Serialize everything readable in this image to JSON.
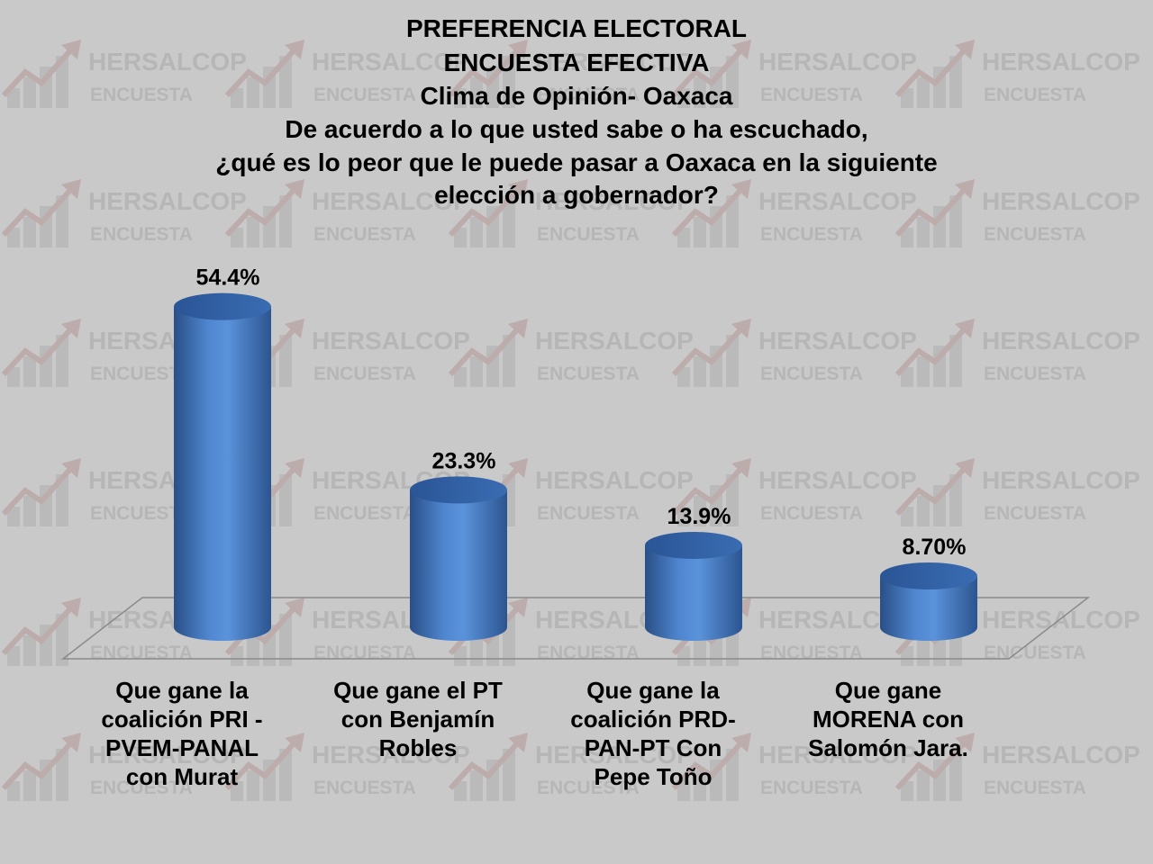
{
  "chart_data": {
    "type": "bar",
    "title_lines": [
      "PREFERENCIA ELECTORAL",
      "ENCUESTA EFECTIVA",
      "Clima de Opinión- Oaxaca",
      "De acuerdo a lo que usted sabe o ha escuchado,",
      "¿qué es lo peor que le puede pasar a Oaxaca en la siguiente",
      "elección a gobernador?"
    ],
    "categories": [
      [
        "Que gane la",
        "coalición PRI -",
        "PVEM-PANAL",
        "con Murat"
      ],
      [
        "Que gane el PT",
        "con Benjamín",
        "Robles"
      ],
      [
        "Que gane la",
        "coalición PRD-",
        "PAN-PT Con",
        "Pepe Toño"
      ],
      [
        "Que gane",
        "MORENA con",
        "Salomón Jara."
      ]
    ],
    "values": [
      54.4,
      23.3,
      13.9,
      8.7
    ],
    "data_labels": [
      "54.4%",
      "23.3%",
      "13.9%",
      "8.70%"
    ],
    "ylim": [
      0,
      60
    ],
    "grid": false,
    "bar_style": "3d-cylinder",
    "colors": {
      "bar": "#4a7cc0",
      "bar_top": "#2f5fa0",
      "background": "#c9c9c9"
    }
  },
  "watermark": {
    "brand": "HERSALCOP",
    "sub": "ENCUESTA"
  }
}
